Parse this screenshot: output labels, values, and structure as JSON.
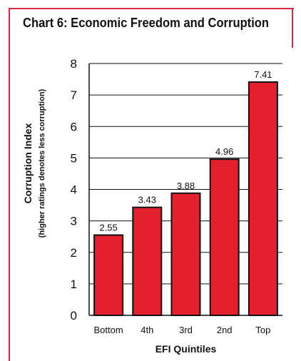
{
  "chart_data": {
    "type": "bar",
    "title": "Chart 6: Economic Freedom and Corruption",
    "xlabel": "EFI Quintiles",
    "ylabel": "Corruption Index",
    "ylabel_sub": "(higher ratings denotes less corruption)",
    "categories": [
      "Bottom",
      "4th",
      "3rd",
      "2nd",
      "Top"
    ],
    "values": [
      2.55,
      3.43,
      3.88,
      4.96,
      7.41
    ],
    "data_labels": [
      "2.55",
      "3.43",
      "3.88",
      "4.96",
      "7.41"
    ],
    "ylim": [
      0,
      8
    ],
    "yticks": [
      0,
      1,
      2,
      3,
      4,
      5,
      6,
      7,
      8
    ],
    "grid": true,
    "bar_color": "#e4202e"
  }
}
